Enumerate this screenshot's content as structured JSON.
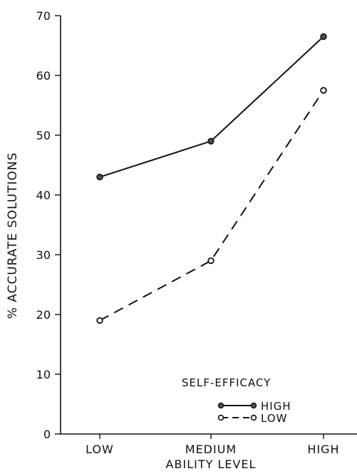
{
  "chart_data": {
    "type": "line",
    "categories": [
      "LOW",
      "MEDIUM",
      "HIGH"
    ],
    "series": [
      {
        "name": "HIGH",
        "values": [
          43,
          49,
          66.5
        ],
        "style": "solid",
        "marker": "filled-circle"
      },
      {
        "name": "LOW",
        "values": [
          19,
          29,
          57.5
        ],
        "style": "dashed",
        "marker": "open-circle"
      }
    ],
    "title": "",
    "xlabel": "ABILITY LEVEL",
    "ylabel": "% ACCURATE SOLUTIONS",
    "ylim": [
      0,
      70
    ],
    "yticks": [
      0,
      10,
      20,
      30,
      40,
      50,
      60,
      70
    ],
    "legend": {
      "title": "SELF-EFFICACY",
      "placement": "lower-right"
    },
    "grid": false,
    "colors": {
      "ink": "#111111",
      "background": "#ffffff"
    }
  }
}
